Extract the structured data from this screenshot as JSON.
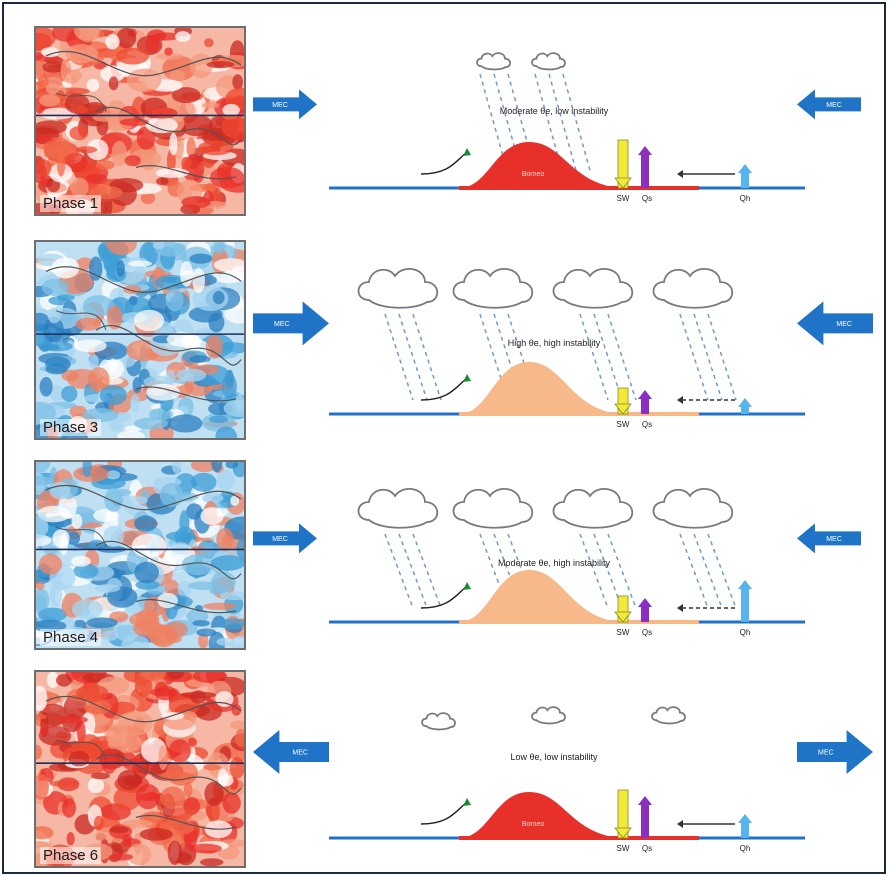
{
  "colors": {
    "arrow_blue": "#1f74c8",
    "land_red": "#e8302a",
    "land_orange": "#f7b98a",
    "surface_blue": "#2270c6",
    "sw_yellow": "#f2ea3a",
    "qs_purple": "#8a2fc0",
    "qh_lightblue": "#56b4ee",
    "warm_map": "#ee4a30",
    "cool_map": "#3c9ed6"
  },
  "rows": [
    {
      "phase_label": "Phase 1",
      "caption": "Moderate θe, low instability",
      "left_wind_label": "MEC",
      "right_wind_label": "MEC",
      "land_label": "Borneo",
      "sw_label": "SW",
      "qs_label": "Qs",
      "qh_label": "Qh",
      "map_tone": "warm",
      "land_tone": "red",
      "wind_direction": "inward",
      "wind_strength": "weak",
      "cloud_size": "small",
      "cloud_count": 2,
      "rain": true
    },
    {
      "phase_label": "Phase 3",
      "caption": "High θe, high instability",
      "left_wind_label": "MEC",
      "right_wind_label": "MEC",
      "land_label": "",
      "sw_label": "SW",
      "qs_label": "Qs",
      "qh_label": "",
      "map_tone": "cool",
      "land_tone": "orange",
      "wind_direction": "inward",
      "wind_strength": "strong",
      "cloud_size": "large",
      "cloud_count": 4,
      "rain": true
    },
    {
      "phase_label": "Phase 4",
      "caption": "Moderate θe, high instability",
      "left_wind_label": "MEC",
      "right_wind_label": "MEC",
      "land_label": "",
      "sw_label": "SW",
      "qs_label": "Qs",
      "qh_label": "Qh",
      "map_tone": "cool",
      "land_tone": "orange",
      "wind_direction": "inward",
      "wind_strength": "weak",
      "cloud_size": "large",
      "cloud_count": 4,
      "rain": true
    },
    {
      "phase_label": "Phase 6",
      "caption": "Low θe, low instability",
      "left_wind_label": "MEC",
      "right_wind_label": "MEC",
      "land_label": "Borneo",
      "sw_label": "SW",
      "qs_label": "Qs",
      "qh_label": "Qh",
      "map_tone": "warm",
      "land_tone": "red",
      "wind_direction": "outward",
      "wind_strength": "strong",
      "cloud_size": "small",
      "cloud_count": 3,
      "rain": false
    }
  ]
}
